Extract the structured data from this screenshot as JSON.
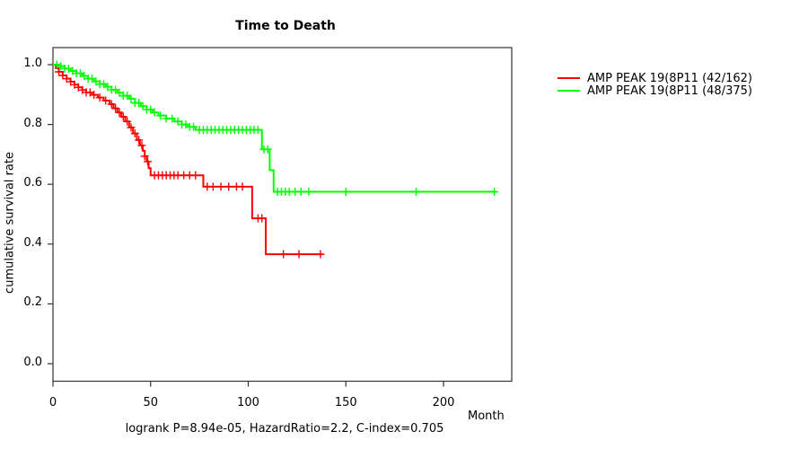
{
  "chart_data": {
    "type": "line",
    "subtype": "kaplan_meier_survival_step",
    "title": "Time to Death",
    "xlabel": "Month",
    "ylabel": "cumulative survival rate",
    "annotation": "logrank P=8.94e-05, HazardRatio=2.2, C-index=0.705",
    "xlim": [
      0,
      235
    ],
    "ylim": [
      0.0,
      1.0
    ],
    "x_ticks": [
      0,
      50,
      100,
      150,
      200
    ],
    "y_tick_labels": [
      "0.0",
      "0.2",
      "0.4",
      "0.6",
      "0.8",
      "1.0"
    ],
    "grid": false,
    "legend_position": "right-outside",
    "colors": {
      "axis": "#333333",
      "background": "#ffffff",
      "text": "#000000"
    },
    "series": [
      {
        "name": "AMP PEAK 19(8P11 (42/162)",
        "color": "#ff0000",
        "events_over_n": "42/162",
        "steps": [
          [
            0,
            1.0
          ],
          [
            1.5,
            0.988
          ],
          [
            3,
            0.976
          ],
          [
            5,
            0.964
          ],
          [
            7,
            0.953
          ],
          [
            9,
            0.943
          ],
          [
            11,
            0.933
          ],
          [
            13,
            0.924
          ],
          [
            15,
            0.915
          ],
          [
            17,
            0.907
          ],
          [
            20,
            0.899
          ],
          [
            23,
            0.89
          ],
          [
            26,
            0.88
          ],
          [
            29,
            0.868
          ],
          [
            31,
            0.854
          ],
          [
            33,
            0.84
          ],
          [
            35,
            0.826
          ],
          [
            37,
            0.81
          ],
          [
            39,
            0.79
          ],
          [
            41,
            0.77
          ],
          [
            43,
            0.748
          ],
          [
            44.5,
            0.73
          ],
          [
            46,
            0.712
          ],
          [
            47,
            0.694
          ],
          [
            48,
            0.676
          ],
          [
            49,
            0.654
          ],
          [
            50,
            0.63
          ],
          [
            77,
            0.592
          ],
          [
            102,
            0.486
          ],
          [
            109,
            0.366
          ]
        ],
        "end_time": 138,
        "censor_times": [
          3,
          5,
          7,
          9,
          11,
          13,
          15,
          17,
          19,
          21,
          24,
          27,
          30,
          32,
          34,
          36,
          38,
          40,
          42,
          44,
          45.5,
          47,
          48.5,
          52,
          54,
          56,
          58,
          60,
          62,
          64,
          67,
          70,
          73,
          79,
          82,
          86,
          90,
          94,
          97,
          105,
          107,
          118,
          126,
          137
        ]
      },
      {
        "name": "AMP PEAK 19(8P11 (48/375)",
        "color": "#00ff00",
        "events_over_n": "48/375",
        "steps": [
          [
            0,
            1.0
          ],
          [
            3,
            0.995
          ],
          [
            6,
            0.987
          ],
          [
            9,
            0.979
          ],
          [
            12,
            0.971
          ],
          [
            15,
            0.962
          ],
          [
            18,
            0.953
          ],
          [
            21,
            0.944
          ],
          [
            24,
            0.935
          ],
          [
            27,
            0.926
          ],
          [
            30,
            0.916
          ],
          [
            33,
            0.906
          ],
          [
            36,
            0.896
          ],
          [
            39,
            0.886
          ],
          [
            42,
            0.872
          ],
          [
            45,
            0.861
          ],
          [
            48,
            0.85
          ],
          [
            51,
            0.84
          ],
          [
            54,
            0.83
          ],
          [
            58,
            0.82
          ],
          [
            62,
            0.81
          ],
          [
            66,
            0.8
          ],
          [
            69,
            0.792
          ],
          [
            73,
            0.782
          ],
          [
            107,
            0.717
          ],
          [
            111,
            0.647
          ],
          [
            113,
            0.575
          ]
        ],
        "end_time": 227,
        "censor_times": [
          2,
          4,
          6,
          8,
          10,
          12,
          14,
          16,
          18,
          20,
          22,
          24,
          26,
          28,
          30,
          32,
          34,
          36,
          38,
          40,
          42,
          44,
          46,
          48,
          50,
          52,
          55,
          58,
          61,
          64,
          66,
          68,
          70,
          72,
          75,
          77,
          79,
          81,
          83,
          85,
          87,
          89,
          91,
          93,
          95,
          97,
          99,
          101,
          103,
          105,
          108,
          110,
          115,
          117,
          119,
          121,
          124,
          127,
          131,
          150,
          186,
          226
        ]
      }
    ]
  }
}
